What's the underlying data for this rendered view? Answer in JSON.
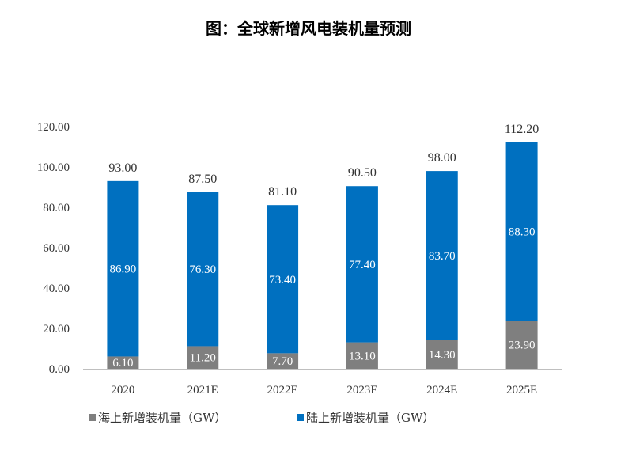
{
  "title": "图：全球新增风电装机量预测",
  "chart_data": {
    "type": "bar",
    "stacked": true,
    "categories": [
      "2020",
      "2021E",
      "2022E",
      "2023E",
      "2024E",
      "2025E"
    ],
    "series": [
      {
        "name": "海上新增装机量（GW）",
        "color": "#7f7f7f",
        "values": [
          6.1,
          11.2,
          7.7,
          13.1,
          14.3,
          23.9
        ],
        "labels": [
          "6.10",
          "11.20",
          "7.70",
          "13.10",
          "14.30",
          "23.90"
        ]
      },
      {
        "name": "陆上新增装机量（GW）",
        "color": "#0070c0",
        "values": [
          86.9,
          76.3,
          73.4,
          77.4,
          83.7,
          88.3
        ],
        "labels": [
          "86.90",
          "76.30",
          "73.40",
          "77.40",
          "83.70",
          "88.30"
        ]
      }
    ],
    "totals": [
      "93.00",
      "87.50",
      "81.10",
      "90.50",
      "98.00",
      "112.20"
    ],
    "ylim": [
      0,
      120
    ],
    "yticks": [
      "0.00",
      "20.00",
      "40.00",
      "60.00",
      "80.00",
      "100.00",
      "120.00"
    ],
    "grid": false,
    "legend_position": "bottom"
  }
}
